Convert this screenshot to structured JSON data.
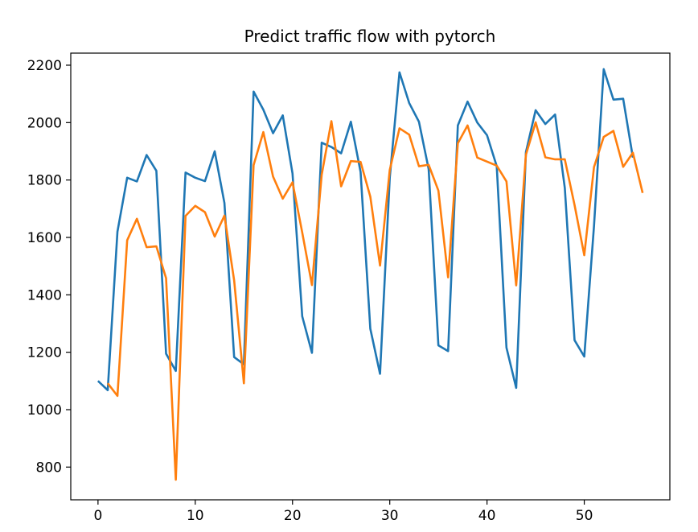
{
  "chart_data": {
    "type": "line",
    "title": "Predict traffic flow with pytorch",
    "xlabel": "",
    "ylabel": "",
    "xlim": [
      -2.8,
      58.8
    ],
    "ylim": [
      686,
      2242
    ],
    "xticks": [
      0,
      10,
      20,
      30,
      40,
      50
    ],
    "yticks": [
      800,
      1000,
      1200,
      1400,
      1600,
      1800,
      2000,
      2200
    ],
    "grid": false,
    "legend": "none",
    "series": [
      {
        "color": "#1f77b4",
        "x": [
          0,
          1,
          2,
          3,
          4,
          5,
          6,
          7,
          8,
          9,
          10,
          11,
          12,
          13,
          14,
          15,
          16,
          17,
          18,
          19,
          20,
          21,
          22,
          23,
          24,
          25,
          26,
          27,
          28,
          29,
          30,
          31,
          32,
          33,
          34,
          35,
          36,
          37,
          38,
          39,
          40,
          41,
          42,
          43,
          44,
          45,
          46,
          47,
          48,
          49,
          50,
          51,
          52,
          53,
          54,
          55
        ],
        "values": [
          1100,
          1068,
          1620,
          1808,
          1795,
          1887,
          1832,
          1195,
          1135,
          1826,
          1808,
          1796,
          1900,
          1720,
          1183,
          1158,
          2108,
          2045,
          1963,
          2025,
          1823,
          1325,
          1198,
          1930,
          1915,
          1893,
          2003,
          1828,
          1282,
          1125,
          1808,
          2175,
          2068,
          2003,
          1838,
          1224,
          1204,
          1990,
          2073,
          2000,
          1956,
          1848,
          1216,
          1076,
          1897,
          2043,
          1995,
          2028,
          1772,
          1242,
          1185,
          1640,
          2186,
          2080,
          2083,
          1878
        ]
      },
      {
        "color": "#ff7f0e",
        "x": [
          1,
          2,
          3,
          4,
          5,
          6,
          7,
          8,
          9,
          10,
          11,
          12,
          13,
          14,
          15,
          16,
          17,
          18,
          19,
          20,
          21,
          22,
          23,
          24,
          25,
          26,
          27,
          28,
          29,
          30,
          31,
          32,
          33,
          34,
          35,
          36,
          37,
          38,
          39,
          40,
          41,
          42,
          43,
          44,
          45,
          46,
          47,
          48,
          49,
          50,
          51,
          52,
          53,
          54,
          55,
          56
        ],
        "values": [
          1092,
          1048,
          1590,
          1665,
          1566,
          1569,
          1458,
          756,
          1675,
          1710,
          1688,
          1603,
          1676,
          1450,
          1092,
          1852,
          1967,
          1812,
          1735,
          1792,
          1617,
          1434,
          1818,
          2005,
          1778,
          1866,
          1863,
          1742,
          1502,
          1835,
          1980,
          1958,
          1848,
          1853,
          1763,
          1461,
          1928,
          1990,
          1878,
          1864,
          1850,
          1795,
          1433,
          1888,
          2001,
          1879,
          1872,
          1872,
          1713,
          1538,
          1845,
          1950,
          1971,
          1846,
          1895,
          1755
        ]
      }
    ]
  }
}
